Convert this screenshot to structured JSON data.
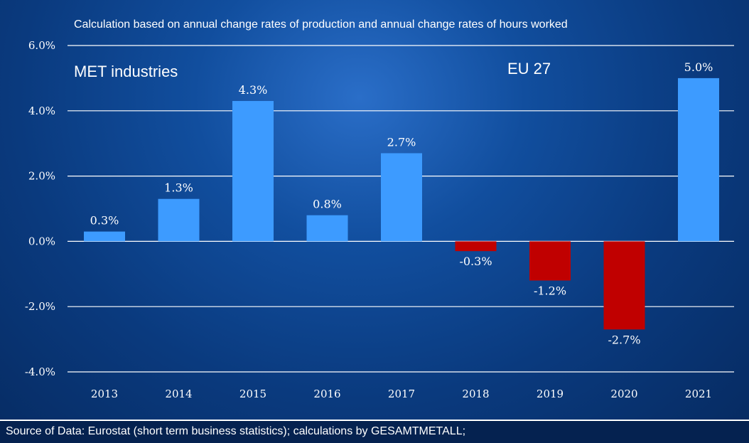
{
  "header": {
    "subtitle": "Calculation based on annual change rates of production and annual change rates of hours worked",
    "label_left": "MET industries",
    "label_right": "EU 27"
  },
  "footer": {
    "source": "Source of Data: Eurostat (short term business statistics); calculations by GESAMTMETALL;"
  },
  "colors": {
    "positive": "#3d9bff",
    "negative": "#c00000",
    "gridline": "#ffffff",
    "text": "#ffffff"
  },
  "chart_data": {
    "type": "bar",
    "categories": [
      "2013",
      "2014",
      "2015",
      "2016",
      "2017",
      "2018",
      "2019",
      "2020",
      "2021"
    ],
    "values": [
      0.3,
      1.3,
      4.3,
      0.8,
      2.7,
      -0.3,
      -1.2,
      -2.7,
      5.0
    ],
    "data_labels": [
      "0.3%",
      "1.3%",
      "4.3%",
      "0.8%",
      "2.7%",
      "-0.3%",
      "-1.2%",
      "-2.7%",
      "5.0%"
    ],
    "ylim": [
      -4.0,
      6.0
    ],
    "yticks": [
      6.0,
      4.0,
      2.0,
      0.0,
      -2.0,
      -4.0
    ],
    "ytick_labels": [
      "6.0%",
      "4.0%",
      "2.0%",
      "0.0%",
      "-2.0%",
      "-4.0%"
    ],
    "grid": true,
    "legend": "none"
  }
}
